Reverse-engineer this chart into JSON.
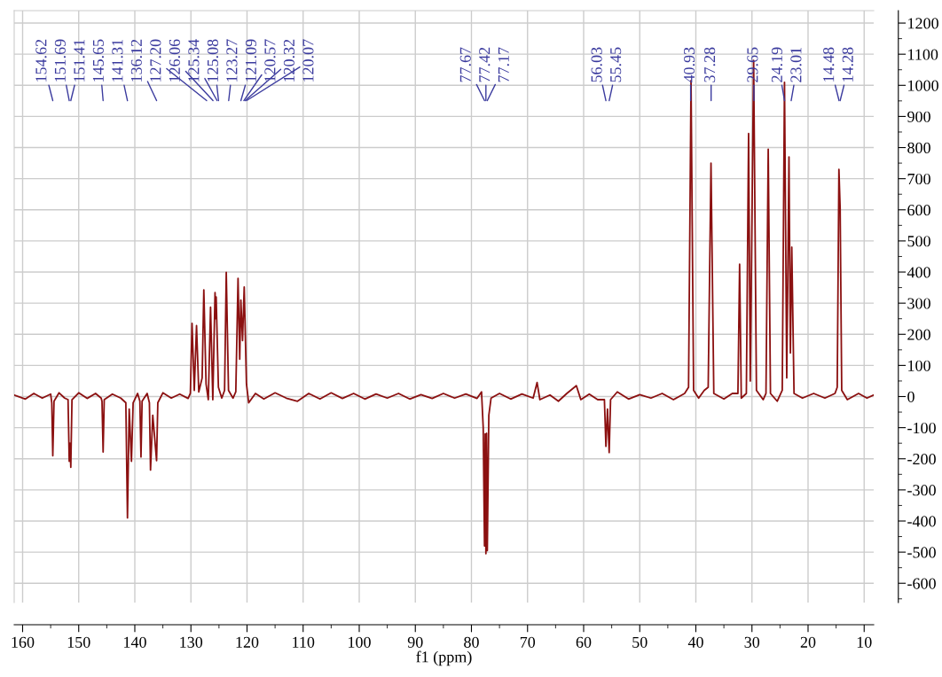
{
  "chart_data": {
    "type": "line",
    "xlabel": "f1 (ppm)",
    "xlim": [
      161.5,
      8.3
    ],
    "ylim": [
      -662,
      1240
    ],
    "xticks": [
      160,
      150,
      140,
      130,
      120,
      110,
      100,
      90,
      80,
      70,
      60,
      50,
      40,
      30,
      20,
      10
    ],
    "yticks": [
      -600,
      -500,
      -400,
      -300,
      -200,
      -100,
      0,
      100,
      200,
      300,
      400,
      500,
      600,
      700,
      800,
      900,
      1000,
      1100,
      1200
    ],
    "grid": true,
    "line_style": "solid",
    "series": [
      {
        "color": "#8b1010",
        "x": [
          161.5,
          159.5,
          158,
          156.5,
          155.0,
          154.8,
          154.62,
          154.4,
          153.5,
          152.5,
          151.9,
          151.69,
          151.55,
          151.41,
          151.2,
          150,
          148.5,
          147,
          146,
          145.85,
          145.65,
          145.45,
          144,
          142.5,
          141.6,
          141.31,
          141.0,
          140.6,
          140.3,
          139.5,
          139.1,
          138.9,
          138.7,
          137.8,
          137.4,
          137.2,
          136.8,
          136.12,
          135.9,
          135,
          133.5,
          132,
          130.5,
          130.1,
          129.8,
          129.4,
          129.0,
          128.6,
          128.0,
          127.7,
          127.3,
          126.9,
          126.5,
          126.1,
          125.7,
          125.6,
          125.5,
          125.1,
          124.5,
          124.0,
          123.7,
          123.3,
          122.5,
          122.0,
          121.6,
          121.3,
          121.1,
          120.8,
          120.5,
          120.1,
          119.7,
          118.5,
          117,
          115,
          113,
          111,
          109,
          107,
          105,
          103,
          101,
          99,
          97,
          95,
          93,
          91,
          89,
          87,
          85,
          83,
          81,
          79,
          78.2,
          77.9,
          77.67,
          77.55,
          77.42,
          77.3,
          77.17,
          76.9,
          76.5,
          75,
          73,
          71,
          69,
          68.3,
          67.8,
          66,
          64.5,
          63,
          61.3,
          60.5,
          59,
          57.5,
          56.3,
          56.03,
          55.75,
          55.45,
          55.2,
          54,
          52,
          50,
          48,
          46,
          44,
          42,
          41.3,
          40.86,
          40.4,
          39.5,
          38.5,
          37.8,
          37.3,
          36.8,
          35,
          33.5,
          32.5,
          32.2,
          31.9,
          31,
          30.6,
          30.3,
          29.7,
          29.2,
          28,
          27.5,
          27.1,
          26.7,
          25.5,
          24.6,
          24.2,
          23.8,
          23.4,
          23.15,
          22.9,
          22.5,
          21,
          19,
          17,
          15.2,
          14.8,
          14.5,
          14.28,
          14.0,
          13,
          11,
          9.5,
          8.3
        ],
        "values": [
          5,
          -8,
          10,
          -5,
          8,
          -20,
          -190,
          -15,
          12,
          -5,
          -10,
          -208,
          -150,
          -227,
          -10,
          12,
          -6,
          10,
          -5,
          -15,
          -178,
          -10,
          8,
          -5,
          -20,
          -390,
          -40,
          -208,
          -20,
          10,
          -15,
          -194,
          -15,
          10,
          -20,
          -236,
          -60,
          -206,
          -20,
          12,
          -5,
          8,
          -6,
          10,
          235,
          20,
          228,
          15,
          60,
          343,
          40,
          -10,
          287,
          -10,
          334,
          250,
          320,
          30,
          -5,
          20,
          399,
          20,
          -5,
          15,
          380,
          120,
          310,
          180,
          352,
          40,
          -20,
          10,
          -8,
          12,
          -5,
          -15,
          10,
          -8,
          12,
          -6,
          10,
          -8,
          8,
          -5,
          10,
          -8,
          6,
          -6,
          10,
          -5,
          8,
          -6,
          15,
          -100,
          -480,
          -120,
          -505,
          -118,
          -495,
          -60,
          -5,
          10,
          -8,
          8,
          -5,
          45,
          -10,
          5,
          -15,
          10,
          35,
          -10,
          8,
          -10,
          -10,
          -160,
          -40,
          -180,
          -10,
          15,
          -8,
          6,
          -5,
          10,
          -10,
          10,
          30,
          1015,
          20,
          -5,
          20,
          30,
          750,
          10,
          -8,
          10,
          10,
          425,
          -5,
          10,
          845,
          50,
          1080,
          20,
          -10,
          10,
          795,
          10,
          -15,
          20,
          1010,
          60,
          770,
          140,
          480,
          10,
          -5,
          10,
          -5,
          10,
          30,
          730,
          605,
          20,
          -10,
          10,
          -5,
          5
        ]
      }
    ],
    "annotations": [
      "154.62",
      "151.69",
      "151.41",
      "145.65",
      "141.31",
      "136.12",
      "127.20",
      "126.06",
      "125.34",
      "125.08",
      "123.27",
      "121.09",
      "120.57",
      "120.32",
      "120.07",
      "77.67",
      "77.42",
      "77.17",
      "56.03",
      "55.45",
      "40.93",
      "37.28",
      "29.65",
      "24.19",
      "23.01",
      "14.48",
      "14.28"
    ]
  }
}
